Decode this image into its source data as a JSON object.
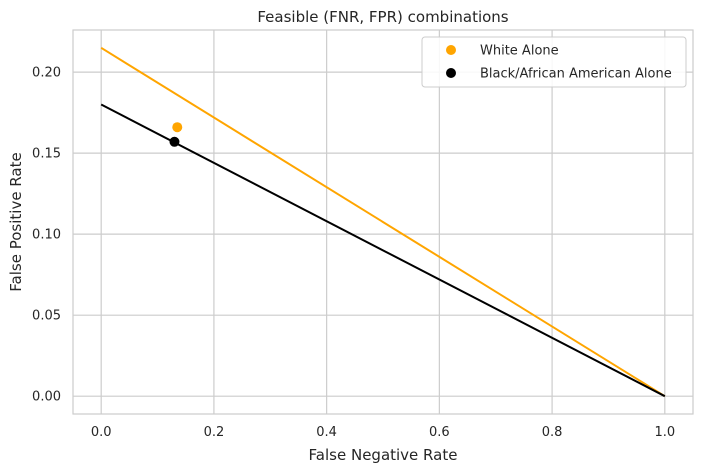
{
  "chart_data": {
    "type": "scatter",
    "title": "Feasible (FNR, FPR) combinations",
    "xlabel": "False Negative Rate",
    "ylabel": "False Positive Rate",
    "xlim": [
      -0.05,
      1.05
    ],
    "ylim": [
      -0.011,
      0.226
    ],
    "xticks": [
      0.0,
      0.2,
      0.4,
      0.6,
      0.8,
      1.0
    ],
    "xtick_labels": [
      "0.0",
      "0.2",
      "0.4",
      "0.6",
      "0.8",
      "1.0"
    ],
    "yticks": [
      0.0,
      0.05,
      0.1,
      0.15,
      0.2
    ],
    "ytick_labels": [
      "0.00",
      "0.05",
      "0.10",
      "0.15",
      "0.20"
    ],
    "grid": true,
    "legend_position": "top-right",
    "series": [
      {
        "name": "White Alone",
        "color": "#FFA500",
        "point": {
          "x": 0.135,
          "y": 0.166
        },
        "line": [
          {
            "x": 0.0,
            "y": 0.215
          },
          {
            "x": 1.0,
            "y": 0.0
          }
        ]
      },
      {
        "name": "Black/African American Alone",
        "color": "#000000",
        "point": {
          "x": 0.13,
          "y": 0.157
        },
        "line": [
          {
            "x": 0.0,
            "y": 0.18
          },
          {
            "x": 1.0,
            "y": 0.0
          }
        ]
      }
    ]
  }
}
